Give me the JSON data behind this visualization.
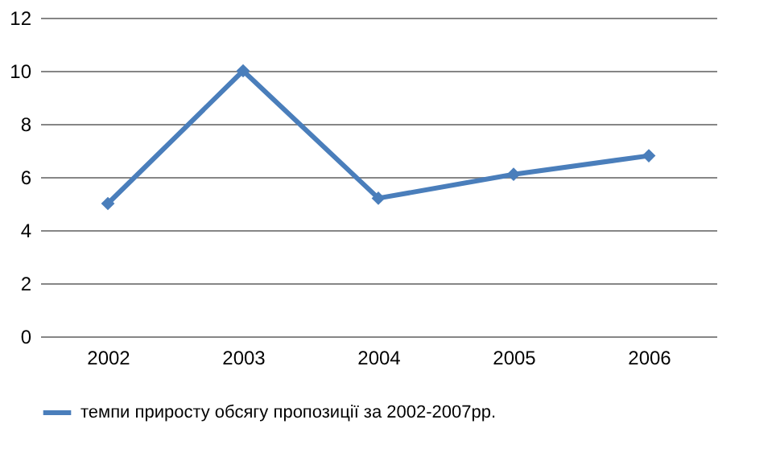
{
  "chart_data": {
    "type": "line",
    "categories": [
      "2002",
      "2003",
      "2004",
      "2005",
      "2006"
    ],
    "series": [
      {
        "name": "темпи приросту обсягу пропозиції за 2002-2007рр.",
        "color": "#4a7ebb",
        "values": [
          5,
          10,
          5.2,
          6.1,
          6.8
        ]
      }
    ],
    "ylim": [
      0,
      12
    ],
    "yticks": [
      0,
      2,
      4,
      6,
      8,
      10,
      12
    ],
    "grid": "y",
    "legend": "bottom",
    "marker": "diamond",
    "line_style": "solid"
  }
}
